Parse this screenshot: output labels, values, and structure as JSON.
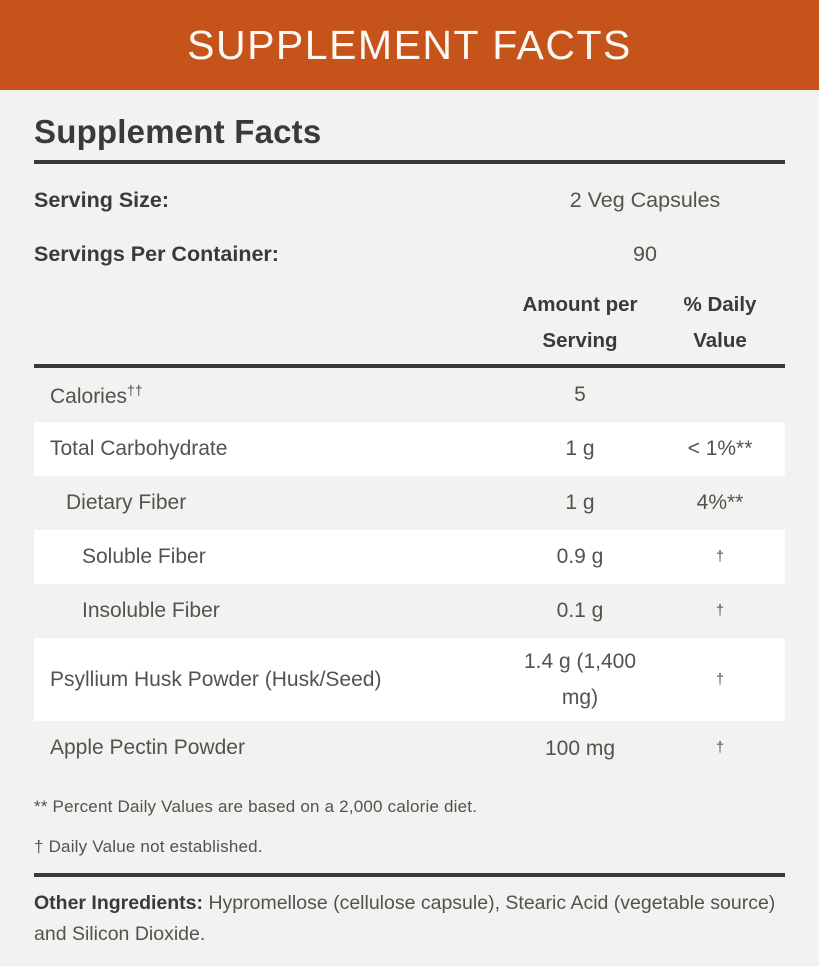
{
  "colors": {
    "banner-bg": "#c5531a",
    "banner-text": "#fdf8f3",
    "page-bg": "#f2f2f0",
    "row-stripe": "#ffffff",
    "divider": "#3a3a38",
    "heading-text": "#3b3a38",
    "body-text": "#54524e"
  },
  "banner": {
    "title": "SUPPLEMENT FACTS"
  },
  "panel": {
    "title": "Supplement Facts",
    "serving_size": {
      "label": "Serving Size:",
      "value": "2 Veg Capsules"
    },
    "servings_per_container": {
      "label": "Servings Per Container:",
      "value": "90"
    },
    "columns": {
      "amount": "Amount per Serving",
      "daily_value": "% Daily Value"
    },
    "rows": [
      {
        "name": "Calories",
        "sup": "††",
        "amount": "5",
        "dv": ""
      },
      {
        "name": "Total Carbohydrate",
        "amount": "1 g",
        "dv": "< 1%**"
      },
      {
        "name": "Dietary Fiber",
        "amount": "1 g",
        "dv": "4%**"
      },
      {
        "name": "Soluble Fiber",
        "amount": "0.9 g",
        "dv": "†"
      },
      {
        "name": "Insoluble Fiber",
        "amount": "0.1 g",
        "dv": "†"
      },
      {
        "name": "Psyllium Husk Powder (Husk/Seed)",
        "amount": "1.4 g (1,400 mg)",
        "dv": "†"
      },
      {
        "name": "Apple Pectin Powder",
        "amount": "100 mg",
        "dv": "†"
      }
    ],
    "footnotes": [
      "** Percent Daily Values are based on a 2,000 calorie diet.",
      "† Daily Value not established."
    ],
    "other_ingredients": {
      "label": "Other Ingredients:",
      "text": "Hypromellose (cellulose capsule), Stearic Acid (vegetable source) and Silicon Dioxide."
    }
  }
}
